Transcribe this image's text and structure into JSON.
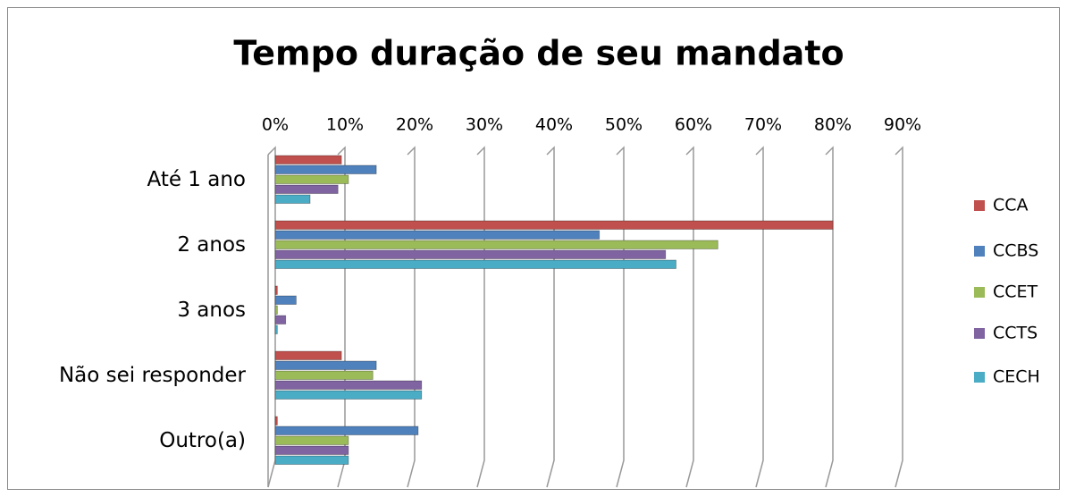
{
  "chart_data": {
    "type": "bar",
    "orientation": "horizontal",
    "title": "Tempo duração de seu mandato",
    "categories": [
      "Até 1 ano",
      "2 anos",
      "3 anos",
      "Não sei responder",
      "Outro(a)"
    ],
    "series": [
      {
        "name": "CCA",
        "color": "#c0504d",
        "values": [
          9.5,
          80,
          0.3,
          9.5,
          0.3
        ]
      },
      {
        "name": "CCBS",
        "color": "#4f81bd",
        "values": [
          14.5,
          46.5,
          3,
          14.5,
          20.5
        ]
      },
      {
        "name": "CCET",
        "color": "#9bbb59",
        "values": [
          10.5,
          63.5,
          0.3,
          14,
          10.5
        ]
      },
      {
        "name": "CCTS",
        "color": "#8064a2",
        "values": [
          9,
          56,
          1.5,
          21,
          10.5
        ]
      },
      {
        "name": "CECH",
        "color": "#4bacc6",
        "values": [
          5,
          57.5,
          0.3,
          21,
          10.5
        ]
      }
    ],
    "xlim": [
      0,
      90
    ],
    "xticks": [
      {
        "value": 0,
        "label": "0%"
      },
      {
        "value": 10,
        "label": "10%"
      },
      {
        "value": 20,
        "label": "20%"
      },
      {
        "value": 30,
        "label": "30%"
      },
      {
        "value": 40,
        "label": "40%"
      },
      {
        "value": 50,
        "label": "50%"
      },
      {
        "value": 60,
        "label": "60%"
      },
      {
        "value": 70,
        "label": "70%"
      },
      {
        "value": 80,
        "label": "80%"
      },
      {
        "value": 90,
        "label": "90%"
      }
    ],
    "grid": true,
    "legend": "right"
  }
}
